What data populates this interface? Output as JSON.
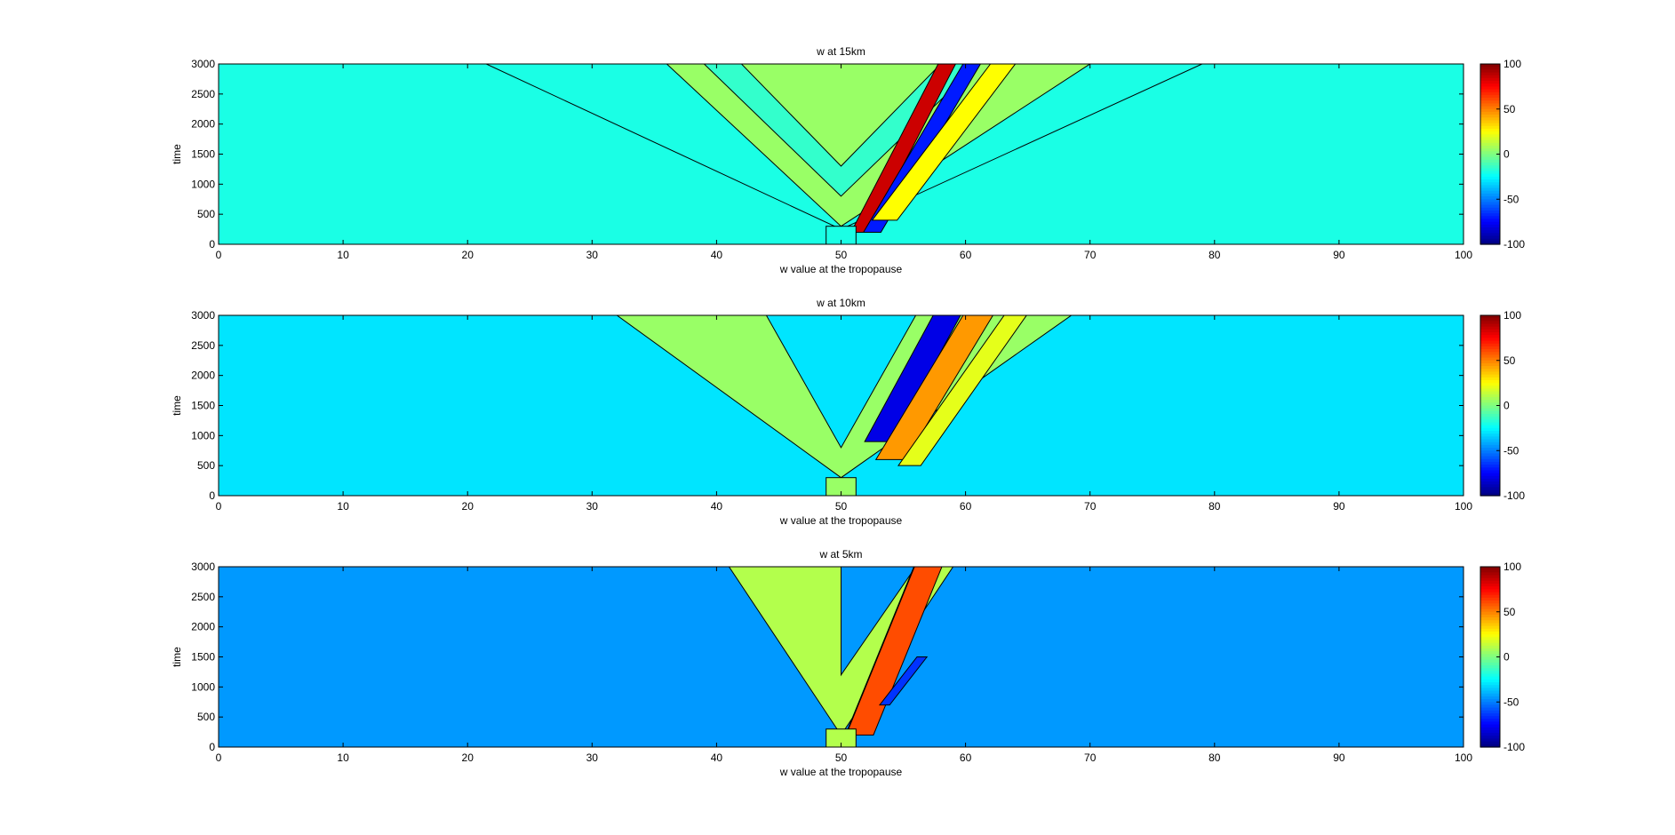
{
  "chart_data": [
    {
      "type": "heatmap",
      "title": "w at 15km",
      "xlabel": "w value at the tropopause",
      "ylabel": "time",
      "xlim": [
        0,
        100
      ],
      "ylim": [
        0,
        3000
      ],
      "xticks": [
        "0",
        "10",
        "20",
        "30",
        "40",
        "50",
        "60",
        "70",
        "80",
        "90",
        "100"
      ],
      "yticks": [
        "0",
        "500",
        "1000",
        "1500",
        "2000",
        "2500",
        "3000"
      ],
      "colorbar": {
        "range": [
          -100,
          100
        ],
        "ticks": [
          "-100",
          "-50",
          "0",
          "50",
          "100"
        ],
        "colormap": "jet"
      },
      "background_value": -20,
      "features": [
        {
          "kind": "fan",
          "apex_x": 50,
          "apex_t": 250,
          "left_x_top": 21.5,
          "right_x_top": 79,
          "value": -20
        },
        {
          "kind": "fan",
          "apex_x": 50,
          "apex_t": 300,
          "left_x_top": 36,
          "right_x_top": 70,
          "value": 5
        },
        {
          "kind": "fan",
          "apex_x": 50,
          "apex_t": 800,
          "left_x_top": 39,
          "right_x_top": 61,
          "value": -15
        },
        {
          "kind": "fan",
          "apex_x": 50,
          "apex_t": 1300,
          "left_x_top": 42,
          "right_x_top": 58,
          "value": 5
        },
        {
          "kind": "band",
          "x0": 51.5,
          "t0": 200,
          "x1": 58.5,
          "t1": 3000,
          "width": 1.4,
          "value": 85
        },
        {
          "kind": "band",
          "x0": 52.5,
          "t0": 200,
          "x1": 60.5,
          "t1": 3000,
          "width": 1.4,
          "value": -70
        },
        {
          "kind": "band",
          "x0": 53.5,
          "t0": 400,
          "x1": 63,
          "t1": 3000,
          "width": 2,
          "value": 25
        }
      ]
    },
    {
      "type": "heatmap",
      "title": "w at 10km",
      "xlabel": "w value at the tropopause",
      "ylabel": "time",
      "xlim": [
        0,
        100
      ],
      "ylim": [
        0,
        3000
      ],
      "xticks": [
        "0",
        "10",
        "20",
        "30",
        "40",
        "50",
        "60",
        "70",
        "80",
        "90",
        "100"
      ],
      "yticks": [
        "0",
        "500",
        "1000",
        "1500",
        "2000",
        "2500",
        "3000"
      ],
      "colorbar": {
        "range": [
          -100,
          100
        ],
        "ticks": [
          "-100",
          "-50",
          "0",
          "50",
          "100"
        ],
        "colormap": "jet"
      },
      "background_value": -30,
      "features": [
        {
          "kind": "fan",
          "apex_x": 50,
          "apex_t": 300,
          "left_x_top": 32,
          "right_x_top": 68.5,
          "value": 5
        },
        {
          "kind": "fan",
          "apex_x": 50,
          "apex_t": 800,
          "left_x_top": 44,
          "right_x_top": 56,
          "value": -30
        },
        {
          "kind": "band",
          "x0": 53,
          "t0": 900,
          "x1": 58.5,
          "t1": 3000,
          "width": 2.2,
          "value": -80
        },
        {
          "kind": "band",
          "x0": 54,
          "t0": 600,
          "x1": 61,
          "t1": 3000,
          "width": 2.4,
          "value": 45
        },
        {
          "kind": "band",
          "x0": 55.5,
          "t0": 500,
          "x1": 64,
          "t1": 3000,
          "width": 1.8,
          "value": 20
        }
      ]
    },
    {
      "type": "heatmap",
      "title": "w at 5km",
      "xlabel": "w value at the tropopause",
      "ylabel": "time",
      "xlim": [
        0,
        100
      ],
      "ylim": [
        0,
        3000
      ],
      "xticks": [
        "0",
        "10",
        "20",
        "30",
        "40",
        "50",
        "60",
        "70",
        "80",
        "90",
        "100"
      ],
      "yticks": [
        "0",
        "500",
        "1000",
        "1500",
        "2000",
        "2500",
        "3000"
      ],
      "colorbar": {
        "range": [
          -100,
          100
        ],
        "ticks": [
          "-100",
          "-50",
          "0",
          "50",
          "100"
        ],
        "colormap": "jet"
      },
      "background_value": -45,
      "features": [
        {
          "kind": "fan",
          "apex_x": 50,
          "apex_t": 200,
          "left_x_top": 41,
          "right_x_top": 59,
          "value": 10
        },
        {
          "kind": "fan",
          "apex_x": 50,
          "apex_t": 1200,
          "left_x_top": 50,
          "right_x_top": 56,
          "value": -45
        },
        {
          "kind": "band",
          "x0": 51,
          "t0": 200,
          "x1": 56.5,
          "t1": 3000,
          "width": 1.3,
          "value": 90
        },
        {
          "kind": "band",
          "x0": 51.5,
          "t0": 200,
          "x1": 57,
          "t1": 3000,
          "width": 2.2,
          "value": 60
        },
        {
          "kind": "band",
          "x0": 53.5,
          "t0": 700,
          "x1": 56.5,
          "t1": 1500,
          "width": 0.8,
          "value": -65
        }
      ]
    }
  ]
}
